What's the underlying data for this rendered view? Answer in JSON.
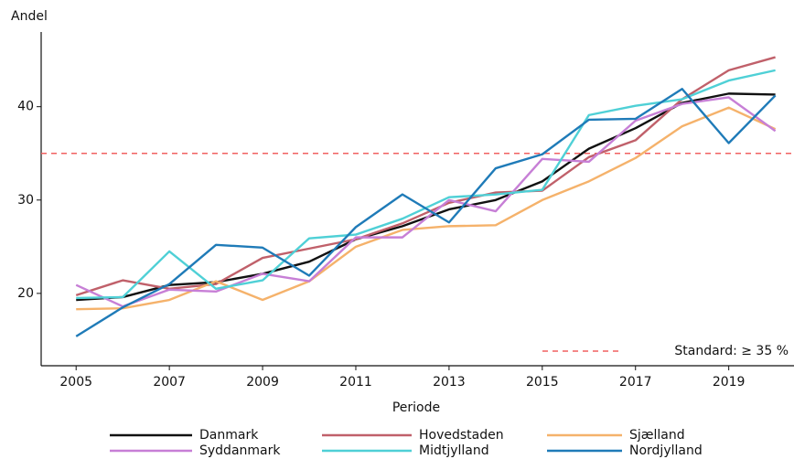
{
  "chart_data": {
    "type": "line",
    "y_label": "Andel",
    "x_label": "Periode",
    "x": [
      2005,
      2006,
      2007,
      2008,
      2009,
      2010,
      2011,
      2012,
      2013,
      2014,
      2015,
      2016,
      2017,
      2018,
      2019,
      2020
    ],
    "series": [
      {
        "name": "Danmark",
        "color": "#111111",
        "values": [
          19.3,
          19.6,
          20.9,
          21.2,
          22.1,
          23.4,
          25.8,
          27.2,
          29.0,
          30.0,
          32.0,
          35.5,
          37.7,
          40.4,
          41.4,
          41.3
        ]
      },
      {
        "name": "Hovedstaden",
        "color": "#c0606a",
        "values": [
          19.8,
          21.4,
          20.5,
          21.0,
          23.8,
          24.8,
          25.8,
          27.5,
          29.7,
          30.8,
          31.0,
          34.6,
          36.4,
          40.8,
          43.9,
          45.3
        ]
      },
      {
        "name": "Sjælland",
        "color": "#f5b26b",
        "values": [
          18.3,
          18.4,
          19.3,
          21.3,
          19.3,
          21.3,
          25.0,
          26.8,
          27.2,
          27.3,
          30.0,
          32.0,
          34.5,
          37.9,
          39.9,
          37.6
        ]
      },
      {
        "name": "Syddanmark",
        "color": "#c77fd6",
        "values": [
          20.9,
          18.6,
          20.4,
          20.2,
          22.1,
          21.3,
          26.0,
          26.0,
          30.0,
          28.8,
          34.4,
          34.1,
          38.5,
          40.3,
          41.0,
          37.4
        ]
      },
      {
        "name": "Midtjylland",
        "color": "#4fd0d6",
        "values": [
          19.5,
          19.6,
          24.5,
          20.5,
          21.4,
          25.9,
          26.3,
          28.0,
          30.3,
          30.6,
          31.1,
          39.1,
          40.1,
          40.8,
          42.8,
          43.9
        ]
      },
      {
        "name": "Nordjylland",
        "color": "#1f7bb8",
        "values": [
          15.4,
          18.5,
          21.0,
          25.2,
          24.9,
          21.9,
          27.1,
          30.6,
          27.6,
          33.4,
          34.9,
          38.6,
          38.7,
          41.9,
          36.1,
          41.2
        ]
      }
    ],
    "reference": {
      "value": 35,
      "label": "Standard: ≥ 35 %",
      "color": "#f06060"
    },
    "xlim": [
      2004.25,
      2020.4
    ],
    "ylim": [
      12.25,
      48
    ],
    "xticks": [
      2005,
      2007,
      2009,
      2011,
      2013,
      2015,
      2017,
      2019
    ],
    "yticks": [
      20,
      30,
      40
    ],
    "grid": false,
    "legend": "bottom"
  }
}
